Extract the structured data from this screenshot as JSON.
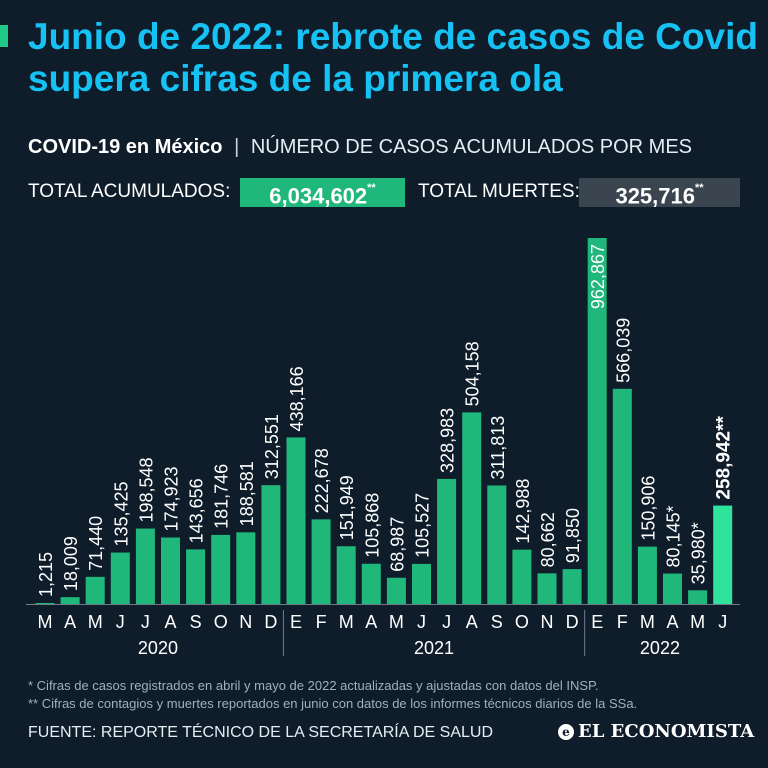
{
  "header": {
    "title": "Junio de 2022: rebrote de casos de Covid supera cifras de la primera ola",
    "subtitle_bold": "COVID-19 en México",
    "subtitle_sep": "|",
    "subtitle_rest": "NÚMERO DE CASOS ACUMULADOS POR MES"
  },
  "totals": {
    "cases_label": "TOTAL ACUMULADOS:",
    "cases_value": "6,034,602",
    "cases_mark": "**",
    "deaths_label": "TOTAL MUERTES:",
    "deaths_value": "325,716",
    "deaths_mark": "**"
  },
  "colors": {
    "background": "#0f1d2b",
    "title": "#16c1f3",
    "bar": "#20b77a",
    "bar_highlight": "#2fe39c",
    "cases_box": "#20b77a",
    "deaths_box": "#3b4550"
  },
  "chart_data": {
    "type": "bar",
    "title": "NÚMERO DE CASOS ACUMULADOS POR MES",
    "categories": [
      "M",
      "A",
      "M",
      "J",
      "J",
      "A",
      "S",
      "O",
      "N",
      "D",
      "E",
      "F",
      "M",
      "A",
      "M",
      "J",
      "J",
      "A",
      "S",
      "O",
      "N",
      "D",
      "E",
      "F",
      "M",
      "A",
      "M",
      "J"
    ],
    "labels": [
      "1,215",
      "18,009",
      "71,440",
      "135,425",
      "198,548",
      "174,923",
      "143,656",
      "181,746",
      "188,581",
      "312,551",
      "438,166",
      "222,678",
      "151,949",
      "105,868",
      "68,987",
      "105,527",
      "328,983",
      "504,158",
      "311,813",
      "142,988",
      "80,662",
      "91,850",
      "962,867",
      "566,039",
      "150,906",
      "80,145*",
      "35,980*",
      "258,942**"
    ],
    "values": [
      1215,
      18009,
      71440,
      135425,
      198548,
      174923,
      143656,
      181746,
      188581,
      312551,
      438166,
      222678,
      151949,
      105868,
      68987,
      105527,
      328983,
      504158,
      311813,
      142988,
      80662,
      91850,
      962867,
      566039,
      150906,
      80145,
      35980,
      258942
    ],
    "years": [
      {
        "label": "2020",
        "start": 0,
        "end": 9
      },
      {
        "label": "2021",
        "start": 10,
        "end": 21
      },
      {
        "label": "2022",
        "start": 22,
        "end": 27
      }
    ],
    "highlight_index": 27,
    "ylim": [
      0,
      962867
    ],
    "xlabel": "",
    "ylabel": ""
  },
  "notes": {
    "note1": "* Cifras de casos registrados en abril y mayo de 2022 actualizadas y ajustadas con datos del INSP.",
    "note2": "** Cifras de contagios y muertes reportados en junio con datos de los informes técnicos diarios de la SSa."
  },
  "footer": {
    "source": "FUENTE: REPORTE TÉCNICO DE LA SECRETARÍA DE SALUD",
    "logo_mark": "e",
    "logo_text": "EL ECONOMISTA"
  }
}
